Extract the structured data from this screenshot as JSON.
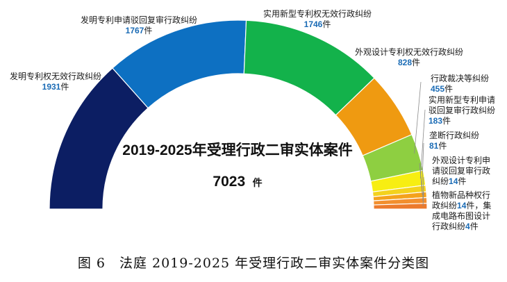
{
  "chart_data": {
    "type": "donut-semicircle",
    "unit": "件",
    "center_title": "2019-2025年受理行政二审实体案件",
    "total": 7023,
    "total_text": "7023",
    "slices": [
      {
        "name": "发明专利权无效行政纠纷",
        "value": 1931,
        "color": "#0c1e63"
      },
      {
        "name": "发明专利申请驳回复审行政纠纷",
        "value": 1767,
        "color": "#0d70c2"
      },
      {
        "name": "实用新型专利权无效行政纠纷",
        "value": 1746,
        "color": "#13b24b"
      },
      {
        "name": "外观设计专利权无效行政纠纷",
        "value": 828,
        "color": "#ef9a11"
      },
      {
        "name": "行政裁决等纠纷",
        "value": 455,
        "color": "#8ecf41"
      },
      {
        "name": "实用新型专利申请驳回复审行政纠纷",
        "value": 183,
        "color": "#f7ee12"
      },
      {
        "name": "垄断行政纠纷",
        "value": 81,
        "color": "#f3d21d"
      },
      {
        "name": "外观设计专利申请驳回复审行政纠纷",
        "value": 14,
        "color": "#f4a21c"
      },
      {
        "name": "植物新品种权行政纠纷",
        "value": 14,
        "color": "#f28f2e"
      },
      {
        "name": "集成电路布图设计行政纠纷",
        "value": 4,
        "color": "#ec7a2c"
      }
    ],
    "label_texts": {
      "s0": {
        "lines": [
          "发明专利权无效行政纠纷"
        ],
        "value": "1931",
        "unit": "件"
      },
      "s1": {
        "lines": [
          "发明专利申请驳回复审行政纠纷"
        ],
        "value": "1767",
        "unit": "件"
      },
      "s2": {
        "lines": [
          "实用新型专利权无效行政纠纷"
        ],
        "value": "1746",
        "unit": "件"
      },
      "s3": {
        "lines": [
          "外观设计专利权无效行政纠纷"
        ],
        "value": "828",
        "unit": "件"
      },
      "s4": {
        "lines": [
          "行政裁决等纠纷"
        ],
        "value": "455",
        "unit": "件"
      },
      "s5": {
        "lines": [
          "实用新型专利申请",
          "驳回复审行政纠纷"
        ],
        "value": "183",
        "unit": "件"
      },
      "s6": {
        "lines": [
          "垄断行政纠纷"
        ],
        "value": "81",
        "unit": "件"
      },
      "s7": {
        "lines": [
          "外观设计专利申",
          "请驳回复审行政",
          "纠纷"
        ],
        "value": "14",
        "unit": "件"
      },
      "s8": {
        "line1": "植物新品种权行",
        "line2_prefix": "政纠纷",
        "value": "14",
        "line2_suffix": "件，集",
        "line3": "成电路布图设计",
        "line4_prefix": "行政纠纷",
        "value2": "4",
        "unit": "件"
      }
    }
  },
  "figure_caption": "图 6　法庭 2019-2025 年受理行政二审实体案件分类图"
}
